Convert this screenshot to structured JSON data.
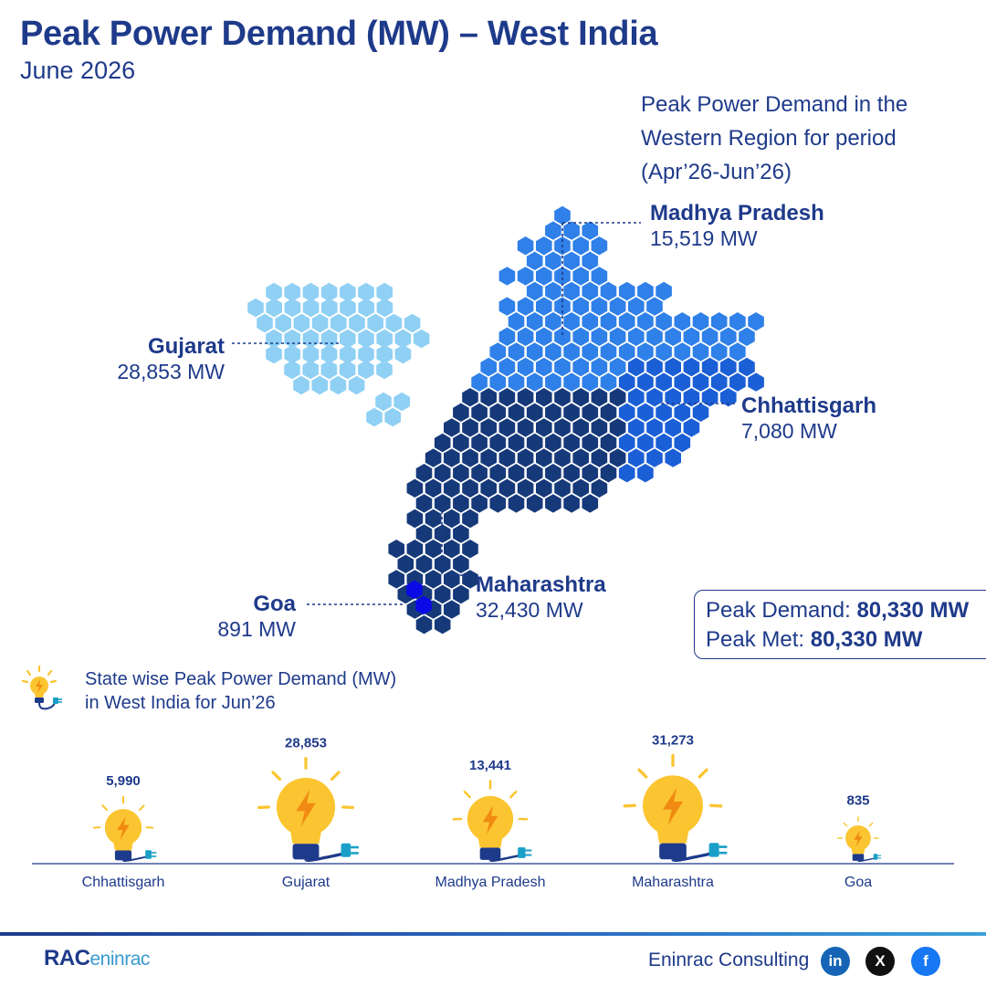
{
  "title": "Peak Power Demand (MW) – West India",
  "subtitle": "June 2026",
  "note": "Peak Power Demand in the Western Region for period (Apr’26-Jun’26)",
  "map_states": [
    {
      "name": "Madhya Pradesh",
      "value": "15,519 MW",
      "color": "#2f80e8"
    },
    {
      "name": "Gujarat",
      "value": "28,853 MW",
      "color": "#8fd0f4"
    },
    {
      "name": "Chhattisgarh",
      "value": "7,080 MW",
      "color": "#1b5fd6"
    },
    {
      "name": "Maharashtra",
      "value": "32,430 MW",
      "color": "#16397a"
    },
    {
      "name": "Goa",
      "value": "891 MW",
      "color": "#0a0ae8"
    }
  ],
  "peak": {
    "demand_label": "Peak Demand:",
    "demand_value": "80,330 MW",
    "met_label": "Peak Met:",
    "met_value": "80,330 MW"
  },
  "legend": {
    "line1": "State wise Peak Power Demand (MW)",
    "line2": "in West India for Jun’26",
    "icon": "lightbulb-icon"
  },
  "chart_data": {
    "type": "bar",
    "title": "State wise Peak Power Demand (MW) in West India for Jun’26",
    "categories": [
      "Chhattisgarh",
      "Gujarat",
      "Madhya Pradesh",
      "Maharashtra",
      "Goa"
    ],
    "values": [
      5990,
      28853,
      13441,
      31273,
      835
    ],
    "value_labels": [
      "5,990",
      "28,853",
      "13,441",
      "31,273",
      "835"
    ],
    "mark": "lightbulb-icon sized by value"
  },
  "footer": {
    "logo_main": "RAC",
    "logo_sub": "eninrac",
    "company": "Eninrac Consulting",
    "linkedin": "in",
    "x": "X",
    "facebook": "f"
  },
  "colors": {
    "primary": "#1e3a8a",
    "bulb_yellow": "#fbc531",
    "bulb_base": "#1e3a8a",
    "plug": "#1aa0c8"
  }
}
